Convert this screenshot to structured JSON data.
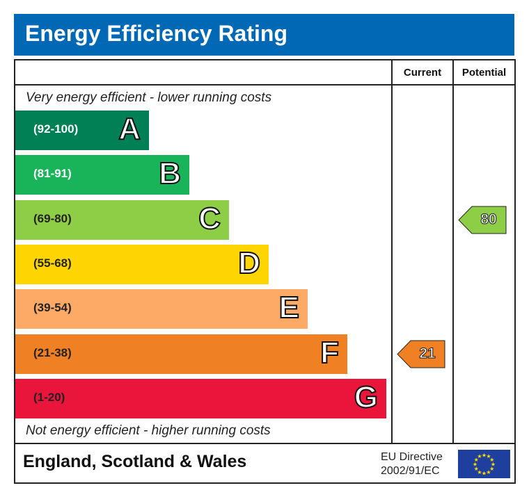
{
  "chart_data": {
    "type": "bar",
    "title": "Energy Efficiency Rating",
    "bands": [
      {
        "range": "(92-100)",
        "letter": "A",
        "color": "#008054",
        "text_color": "#ffffff",
        "min": 92,
        "max": 100
      },
      {
        "range": "(81-91)",
        "letter": "B",
        "color": "#19b459",
        "text_color": "#ffffff",
        "min": 81,
        "max": 91
      },
      {
        "range": "(69-80)",
        "letter": "C",
        "color": "#8dce46",
        "text_color": "#222222",
        "min": 69,
        "max": 80
      },
      {
        "range": "(55-68)",
        "letter": "D",
        "color": "#ffd500",
        "text_color": "#222222",
        "min": 55,
        "max": 68
      },
      {
        "range": "(39-54)",
        "letter": "E",
        "color": "#fcaa65",
        "text_color": "#222222",
        "min": 39,
        "max": 54
      },
      {
        "range": "(21-38)",
        "letter": "F",
        "color": "#ef8023",
        "text_color": "#222222",
        "min": 21,
        "max": 38
      },
      {
        "range": "(1-20)",
        "letter": "G",
        "color": "#e9153b",
        "text_color": "#222222",
        "min": 1,
        "max": 20
      }
    ],
    "columns": [
      "Current",
      "Potential"
    ],
    "ratings": [
      {
        "column": "Current",
        "value": 21,
        "band": "F",
        "color": "#ef8023"
      },
      {
        "column": "Potential",
        "value": 80,
        "band": "C",
        "color": "#8dce46"
      }
    ]
  },
  "header": {
    "title": "Energy Efficiency Rating"
  },
  "columns": {
    "current": "Current",
    "potential": "Potential"
  },
  "notes": {
    "top": "Very energy efficient - lower running costs",
    "bottom": "Not energy efficient - higher running costs"
  },
  "footer": {
    "region": "England, Scotland & Wales",
    "directive_line1": "EU Directive",
    "directive_line2": "2002/91/EC",
    "flag_icon": "eu-flag-icon"
  }
}
